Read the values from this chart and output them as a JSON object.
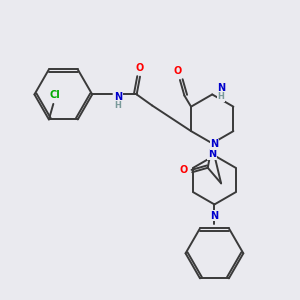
{
  "bg_color": "#eaeaef",
  "bond_color": "#3a3a3a",
  "atom_colors": {
    "O": "#ff0000",
    "N": "#0000cc",
    "Cl": "#00aa00",
    "NH": "#0000cc",
    "H": "#7a9a9a"
  },
  "figsize": [
    3.0,
    3.0
  ],
  "dpi": 100
}
